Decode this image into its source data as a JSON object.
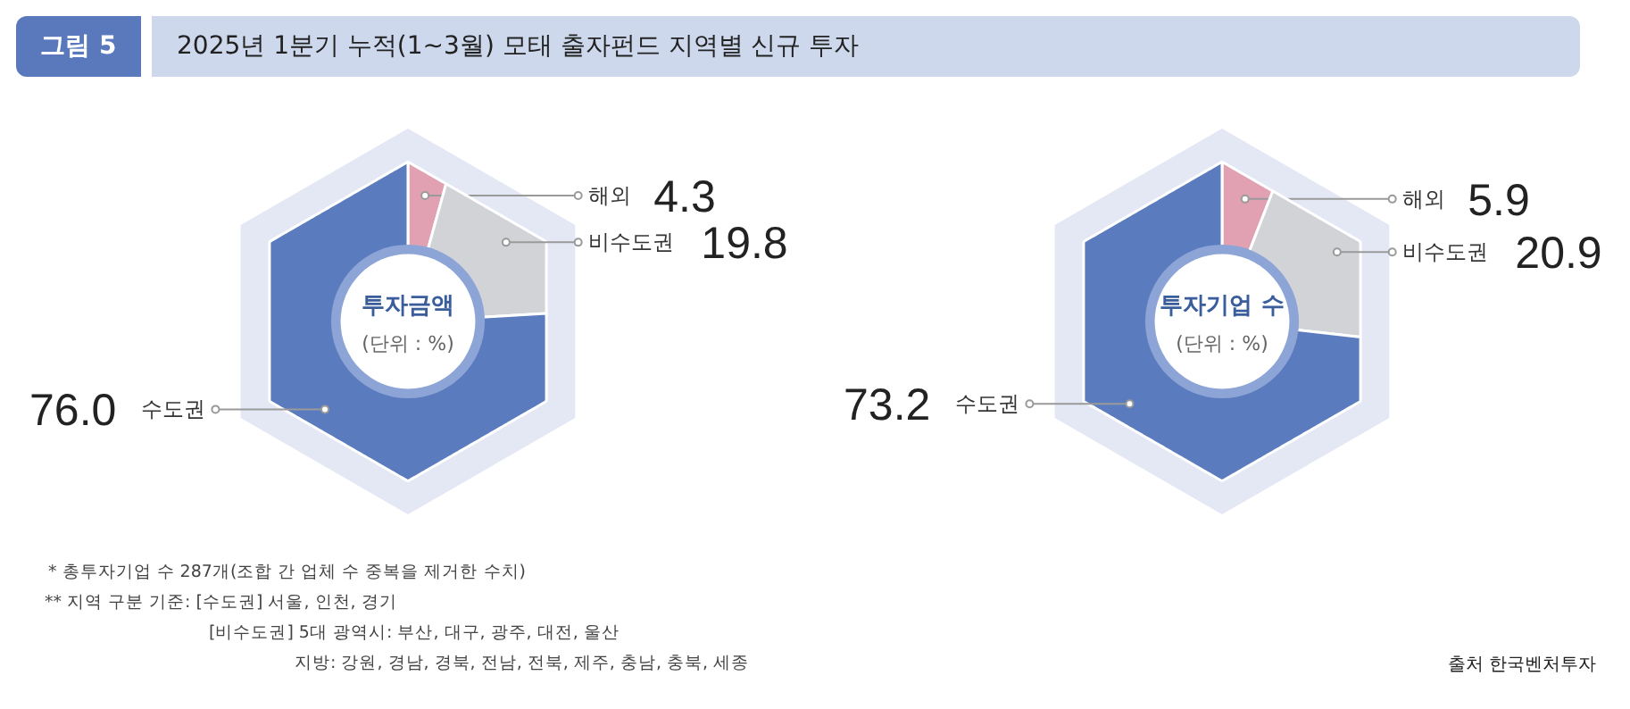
{
  "chart_data": [
    {
      "type": "donut",
      "title": "투자금액",
      "subtitle": "(단위 : %)",
      "categories": [
        "해외",
        "비수도권",
        "수도권"
      ],
      "values": [
        4.3,
        19.8,
        76.0
      ],
      "value_labels": [
        "4.3",
        "19.8",
        "76.0"
      ],
      "colors": [
        "#e2a1b3",
        "#d2d3d7",
        "#5b7bbf"
      ],
      "annotations": [
        "그림 5",
        "2025년 1분기 누적(1~3월) 모태 출자펀드 지역별 신규 투자",
        "*  총투자기업 수 287개(조합 간 업체 수 중복을 제거한 수치)",
        "**  지역 구분 기준: [수도권] 서울, 인천, 경기",
        "[비수도권] 5대 광역시: 부산, 대구, 광주, 대전, 울산",
        "지방: 강원, 경남, 경북, 전남, 전북, 제주, 충남, 충북, 세종",
        "출처 한국벤처투자"
      ]
    },
    {
      "type": "donut",
      "title": "투자기업 수",
      "subtitle": "(단위 : %)",
      "categories": [
        "해외",
        "비수도권",
        "수도권"
      ],
      "values": [
        5.9,
        20.9,
        73.2
      ],
      "value_labels": [
        "5.9",
        "20.9",
        "73.2"
      ],
      "colors": [
        "#e2a1b3",
        "#d2d3d7",
        "#5b7bbf"
      ]
    }
  ]
}
